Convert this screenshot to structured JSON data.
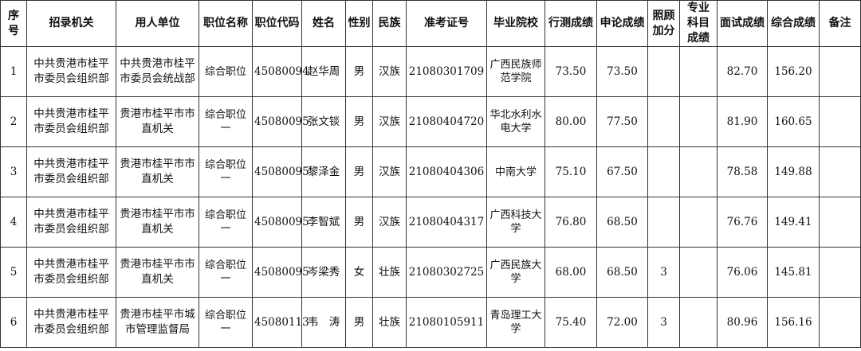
{
  "headers": [
    "序号",
    "招录机关",
    "用人单位",
    "职位名称",
    "职位代码",
    "姓名",
    "性别",
    "民族",
    "准考证号",
    "毕业院校",
    "行测成绩",
    "申论成绩",
    "照顾加分",
    "专业科目成绩",
    "面试成绩",
    "综合成绩",
    "备注"
  ],
  "header_lines": {
    "seq": [
      "序",
      "号"
    ],
    "bonus": [
      "照顾",
      "加分"
    ],
    "major": [
      "专业",
      "科目",
      "成绩"
    ]
  },
  "rows": [
    {
      "seq": "1",
      "agency": [
        "中共贵港市桂平",
        "市委员会组织部"
      ],
      "unit": [
        "中共贵港市桂平",
        "市委员会统战部"
      ],
      "position": [
        "综合职位",
        ""
      ],
      "code": "45080094",
      "name": "赵华周",
      "gender": "男",
      "ethnicity": "汉族",
      "exam_id": "21080301709",
      "school": [
        "广西民族师",
        "范学院"
      ],
      "xingce": "73.50",
      "shenlun": "73.50",
      "bonus": "",
      "major": "",
      "interview": "82.70",
      "total": "156.20",
      "note": ""
    },
    {
      "seq": "2",
      "agency": [
        "中共贵港市桂平",
        "市委员会组织部"
      ],
      "unit": [
        "贵港市桂平市市",
        "直机关"
      ],
      "position": [
        "综合职位",
        "一"
      ],
      "code": "45080095",
      "name": "张文锬",
      "gender": "男",
      "ethnicity": "汉族",
      "exam_id": "21080404720",
      "school": [
        "华北水利水",
        "电大学"
      ],
      "xingce": "80.00",
      "shenlun": "77.50",
      "bonus": "",
      "major": "",
      "interview": "81.90",
      "total": "160.65",
      "note": ""
    },
    {
      "seq": "3",
      "agency": [
        "中共贵港市桂平",
        "市委员会组织部"
      ],
      "unit": [
        "贵港市桂平市市",
        "直机关"
      ],
      "position": [
        "综合职位",
        "一"
      ],
      "code": "45080095",
      "name": "黎泽金",
      "gender": "男",
      "ethnicity": "汉族",
      "exam_id": "21080404306",
      "school": [
        "中南大学",
        ""
      ],
      "xingce": "75.10",
      "shenlun": "67.50",
      "bonus": "",
      "major": "",
      "interview": "78.58",
      "total": "149.88",
      "note": ""
    },
    {
      "seq": "4",
      "agency": [
        "中共贵港市桂平",
        "市委员会组织部"
      ],
      "unit": [
        "贵港市桂平市市",
        "直机关"
      ],
      "position": [
        "综合职位",
        "一"
      ],
      "code": "45080095",
      "name": "李智斌",
      "gender": "男",
      "ethnicity": "汉族",
      "exam_id": "21080404317",
      "school": [
        "广西科技大",
        "学"
      ],
      "xingce": "76.80",
      "shenlun": "68.50",
      "bonus": "",
      "major": "",
      "interview": "76.76",
      "total": "149.41",
      "note": ""
    },
    {
      "seq": "5",
      "agency": [
        "中共贵港市桂平",
        "市委员会组织部"
      ],
      "unit": [
        "贵港市桂平市市",
        "直机关"
      ],
      "position": [
        "综合职位",
        "一"
      ],
      "code": "45080095",
      "name": "岑梁秀",
      "gender": "女",
      "ethnicity": "壮族",
      "exam_id": "21080302725",
      "school": [
        "广西民族大",
        "学"
      ],
      "xingce": "68.00",
      "shenlun": "68.50",
      "bonus": "3",
      "major": "",
      "interview": "76.06",
      "total": "145.81",
      "note": ""
    },
    {
      "seq": "6",
      "agency": [
        "中共贵港市桂平",
        "市委员会组织部"
      ],
      "unit": [
        "贵港市桂平市城",
        "市管理监督局"
      ],
      "position": [
        "综合职位",
        "一"
      ],
      "code": "45080113",
      "name": "韦　涛",
      "gender": "男",
      "ethnicity": "壮族",
      "exam_id": "21080105911",
      "school": [
        "青岛理工大",
        "学"
      ],
      "xingce": "75.40",
      "shenlun": "72.00",
      "bonus": "3",
      "major": "",
      "interview": "80.96",
      "total": "156.16",
      "note": ""
    }
  ]
}
